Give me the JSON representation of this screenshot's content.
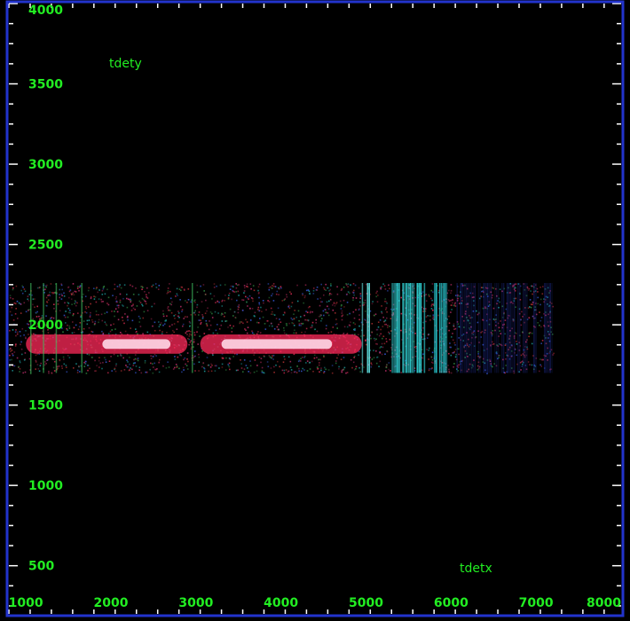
{
  "chart_data": {
    "type": "heatmap",
    "title": "",
    "xlabel": "tdetx",
    "ylabel": "tdety",
    "xlim": [
      800,
      8000
    ],
    "ylim": [
      200,
      4000
    ],
    "x_ticks": [
      "1000",
      "2000",
      "3000",
      "4000",
      "5000",
      "6000",
      "7000",
      "8000"
    ],
    "y_ticks": [
      "500",
      "1000",
      "1500",
      "2000",
      "2500",
      "3000",
      "3500",
      "4000"
    ],
    "grid": false,
    "legend": "none",
    "regions": [
      {
        "name": "background-spread",
        "x": [
          800,
          7200
        ],
        "y": [
          1700,
          2260
        ],
        "color": "#8a1a3a"
      },
      {
        "name": "spectrum-trace-left",
        "x": [
          1000,
          2900
        ],
        "y": [
          1820,
          1940
        ],
        "color": "#ff2a5a"
      },
      {
        "name": "spectrum-trace-right",
        "x": [
          3050,
          4950
        ],
        "y": [
          1820,
          1940
        ],
        "color": "#ff2a5a"
      },
      {
        "name": "bright-core-left",
        "x": [
          1900,
          2700
        ],
        "y": [
          1850,
          1910
        ],
        "color": "#ffd8e8"
      },
      {
        "name": "bright-core-right",
        "x": [
          3300,
          4600
        ],
        "y": [
          1850,
          1910
        ],
        "color": "#ffd8e8"
      },
      {
        "name": "cyan-band-1",
        "x": [
          4950,
          5050
        ],
        "y": [
          1700,
          2260
        ],
        "color": "#66f0f0"
      },
      {
        "name": "cyan-band-2",
        "x": [
          5300,
          5700
        ],
        "y": [
          1700,
          2260
        ],
        "color": "#33dde0"
      },
      {
        "name": "cyan-band-3",
        "x": [
          5800,
          6000
        ],
        "y": [
          1700,
          2260
        ],
        "color": "#2ac8d0"
      },
      {
        "name": "blue-fade",
        "x": [
          6000,
          7200
        ],
        "y": [
          1700,
          2260
        ],
        "color": "#2030a0"
      }
    ],
    "colors": {
      "background": "#000000",
      "frame": "#2233cc",
      "ticks": "#ffffff",
      "labels": "#22ee22"
    }
  }
}
